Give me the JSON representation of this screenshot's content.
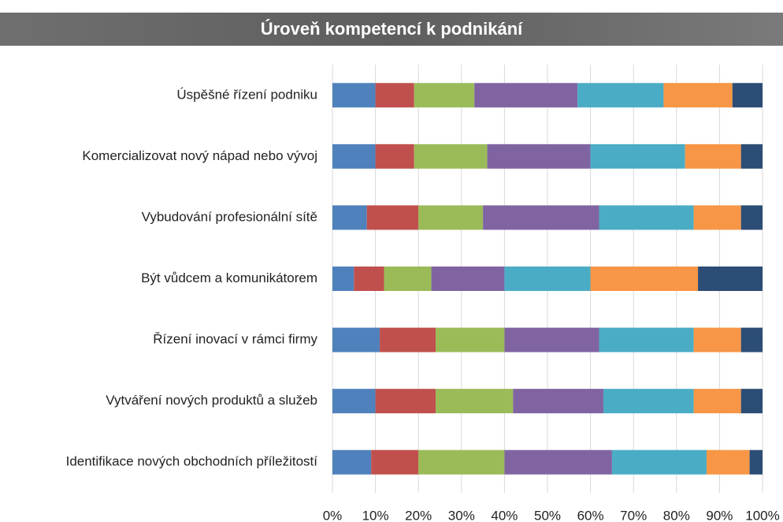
{
  "chart_data": {
    "type": "stacked-barh",
    "title": "Úroveň kompetencí k podnikání",
    "categories": [
      "Úspěšné řízení podniku",
      "Komercializovat nový nápad nebo vývoj",
      "Vybudování profesionální sítě",
      "Být vůdcem a komunikátorem",
      "Řízení inovací v rámci firmy",
      "Vytváření nových produktů a služeb",
      "Identifikace nových obchodních příležitostí"
    ],
    "series": [
      {
        "color": "#4f81bd",
        "values": [
          10,
          10,
          8,
          5,
          11,
          10,
          9
        ]
      },
      {
        "color": "#c0504d",
        "values": [
          9,
          9,
          12,
          7,
          13,
          14,
          11
        ]
      },
      {
        "color": "#9bbb59",
        "values": [
          14,
          17,
          15,
          11,
          16,
          18,
          20
        ]
      },
      {
        "color": "#8064a2",
        "values": [
          24,
          24,
          27,
          17,
          22,
          21,
          25
        ]
      },
      {
        "color": "#4bacc6",
        "values": [
          20,
          22,
          22,
          20,
          22,
          21,
          22
        ]
      },
      {
        "color": "#f79646",
        "values": [
          16,
          13,
          11,
          25,
          11,
          11,
          10
        ]
      },
      {
        "color": "#2c4d75",
        "values": [
          7,
          5,
          5,
          15,
          5,
          5,
          3
        ]
      }
    ],
    "xlim": [
      0,
      100
    ],
    "xticks": [
      {
        "value": 0,
        "label": "0%"
      },
      {
        "value": 10,
        "label": "10%"
      },
      {
        "value": 20,
        "label": "20%"
      },
      {
        "value": 30,
        "label": "30%"
      },
      {
        "value": 40,
        "label": "40%"
      },
      {
        "value": 50,
        "label": "50%"
      },
      {
        "value": 60,
        "label": "60%"
      },
      {
        "value": 70,
        "label": "70%"
      },
      {
        "value": 80,
        "label": "80%"
      },
      {
        "value": 90,
        "label": "90%"
      },
      {
        "value": 100,
        "label": "100%"
      }
    ],
    "grid": true
  }
}
